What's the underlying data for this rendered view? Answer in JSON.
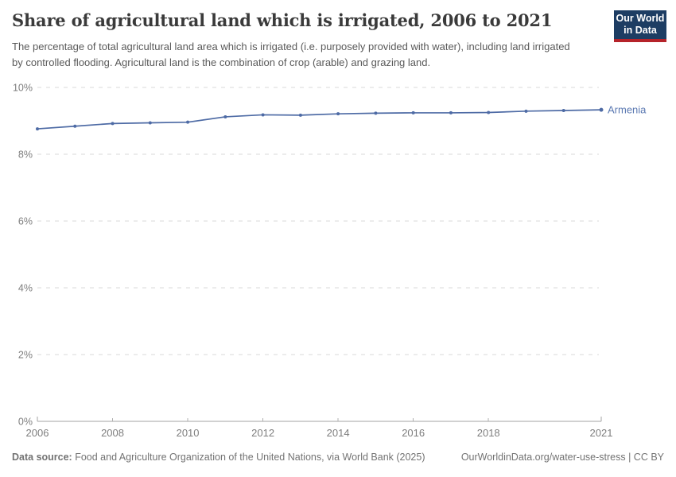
{
  "header": {
    "logo": {
      "line1": "Our World",
      "line2": "in Data"
    }
  },
  "chart_data": {
    "type": "line",
    "title": "Share of agricultural land which is irrigated, 2006 to 2021",
    "subtitle": "The percentage of total agricultural land area which is irrigated (i.e. purposely provided with water), including land irrigated by controlled flooding. Agricultural land is the combination of crop (arable) and grazing land.",
    "x": [
      2006,
      2007,
      2008,
      2009,
      2010,
      2011,
      2012,
      2013,
      2014,
      2015,
      2016,
      2017,
      2018,
      2019,
      2020,
      2021
    ],
    "series": [
      {
        "name": "Armenia",
        "color": "#4e6ba5",
        "values": [
          8.76,
          8.84,
          8.92,
          8.94,
          8.96,
          9.12,
          9.18,
          9.17,
          9.21,
          9.23,
          9.24,
          9.24,
          9.25,
          9.29,
          9.31,
          9.33
        ]
      }
    ],
    "xlabel": "",
    "ylabel": "",
    "xlim": [
      2006,
      2021
    ],
    "ylim": [
      0,
      10
    ],
    "x_ticks": [
      2006,
      2008,
      2010,
      2012,
      2014,
      2016,
      2018,
      2021
    ],
    "y_ticks": [
      0,
      2,
      4,
      6,
      8,
      10
    ],
    "y_tick_suffix": "%",
    "grid": "horizontal-dashed",
    "legend_position": "end-of-line-label"
  },
  "footer": {
    "datasource_label": "Data source:",
    "datasource_text": " Food and Agriculture Organization of the United Nations, via World Bank (2025)",
    "credit": "OurWorldinData.org/water-use-stress | CC BY"
  },
  "colors": {
    "line": "#4e6ba5",
    "entity_label": "#5b79b2",
    "grid": "#dadada",
    "axis": "#a3a3a3",
    "tick": "#b0b0b0",
    "tick_label": "#7e7e7e",
    "title": "#3a3a3a",
    "subtitle": "#595959",
    "footer": "#737373",
    "logo_bg": "#1d3d63",
    "logo_accent": "#b5232a"
  }
}
